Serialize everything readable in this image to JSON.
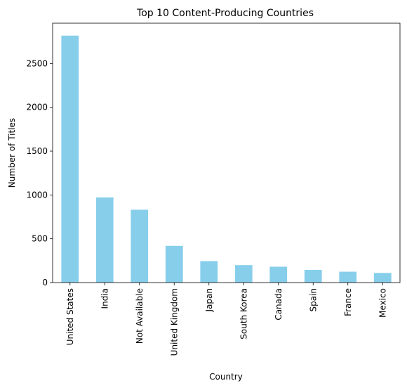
{
  "chart_data": {
    "type": "bar",
    "title": "Top 10 Content-Producing Countries",
    "xlabel": "Country",
    "ylabel": "Number of Titles",
    "categories": [
      "United States",
      "India",
      "Not Available",
      "United Kingdom",
      "Japan",
      "South Korea",
      "Canada",
      "Spain",
      "France",
      "Mexico"
    ],
    "values": [
      2818,
      972,
      831,
      419,
      245,
      199,
      181,
      145,
      124,
      110
    ],
    "ylim": [
      0,
      2960
    ],
    "yticks": [
      0,
      500,
      1000,
      1500,
      2000,
      2500
    ],
    "bar_color": "#87CEEB",
    "grid": false,
    "legend": "none"
  }
}
